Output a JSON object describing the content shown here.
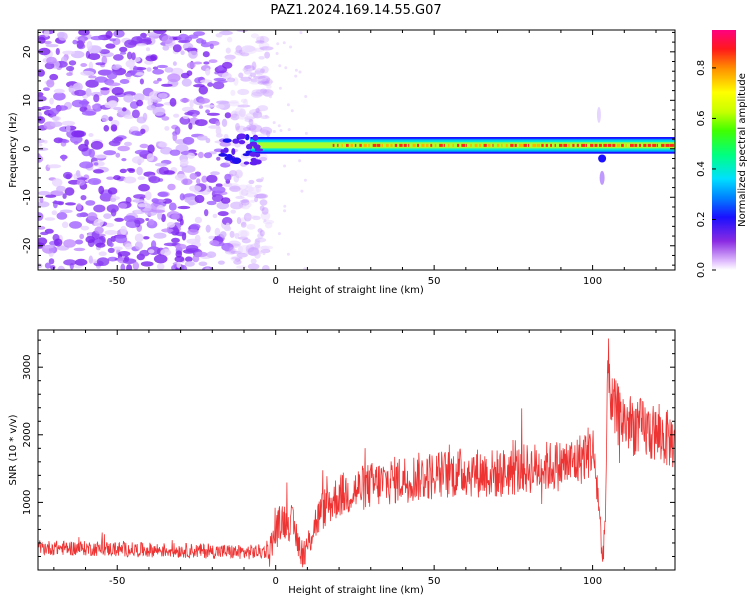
{
  "title": "PAZ1.2024.169.14.55.G07",
  "chart_data": [
    {
      "type": "heatmap",
      "title": "PAZ1.2024.169.14.55.G07",
      "xlabel": "Height of straight line (km)",
      "ylabel": "Frequency (Hz)",
      "xlim": [
        -75,
        126
      ],
      "ylim": [
        -25,
        24.5
      ],
      "xticks": [
        -50,
        0,
        50,
        100
      ],
      "yticks": [
        -20,
        -10,
        0,
        10,
        20
      ],
      "colorbar": {
        "label": "Normalized spectral amplitude",
        "range": [
          0.0,
          0.95
        ],
        "ticks": [
          0.0,
          0.2,
          0.4,
          0.6,
          0.8
        ]
      },
      "features": {
        "noise_region_x": [
          -75,
          -8
        ],
        "signal_band_x": [
          -8,
          126
        ],
        "signal_center_hz": 0.7,
        "signal_halfwidth_hz": 1.5,
        "peak_amplitude": 0.9,
        "disturbance_x": 103
      }
    },
    {
      "type": "line",
      "xlabel": "Height of straight line (km)",
      "ylabel": "SNR (10 * v/v)",
      "xlim": [
        -75,
        126
      ],
      "ylim": [
        0,
        3550
      ],
      "xticks": [
        -50,
        0,
        50,
        100
      ],
      "yticks": [
        1000,
        2000,
        3000
      ],
      "color": "#ee3333",
      "x": [
        -75,
        -60,
        -45,
        -30,
        -15,
        -10,
        -2,
        0,
        2,
        5,
        8,
        9,
        12,
        15,
        20,
        30,
        40,
        50,
        60,
        70,
        80,
        90,
        95,
        100,
        102,
        103,
        104,
        105,
        106,
        110,
        115,
        120,
        126
      ],
      "y": [
        330,
        320,
        300,
        290,
        270,
        260,
        280,
        560,
        750,
        700,
        300,
        180,
        650,
        900,
        1100,
        1250,
        1350,
        1400,
        1450,
        1420,
        1500,
        1550,
        1600,
        1800,
        1000,
        150,
        700,
        3300,
        2400,
        2200,
        2100,
        2000,
        1900
      ]
    }
  ]
}
